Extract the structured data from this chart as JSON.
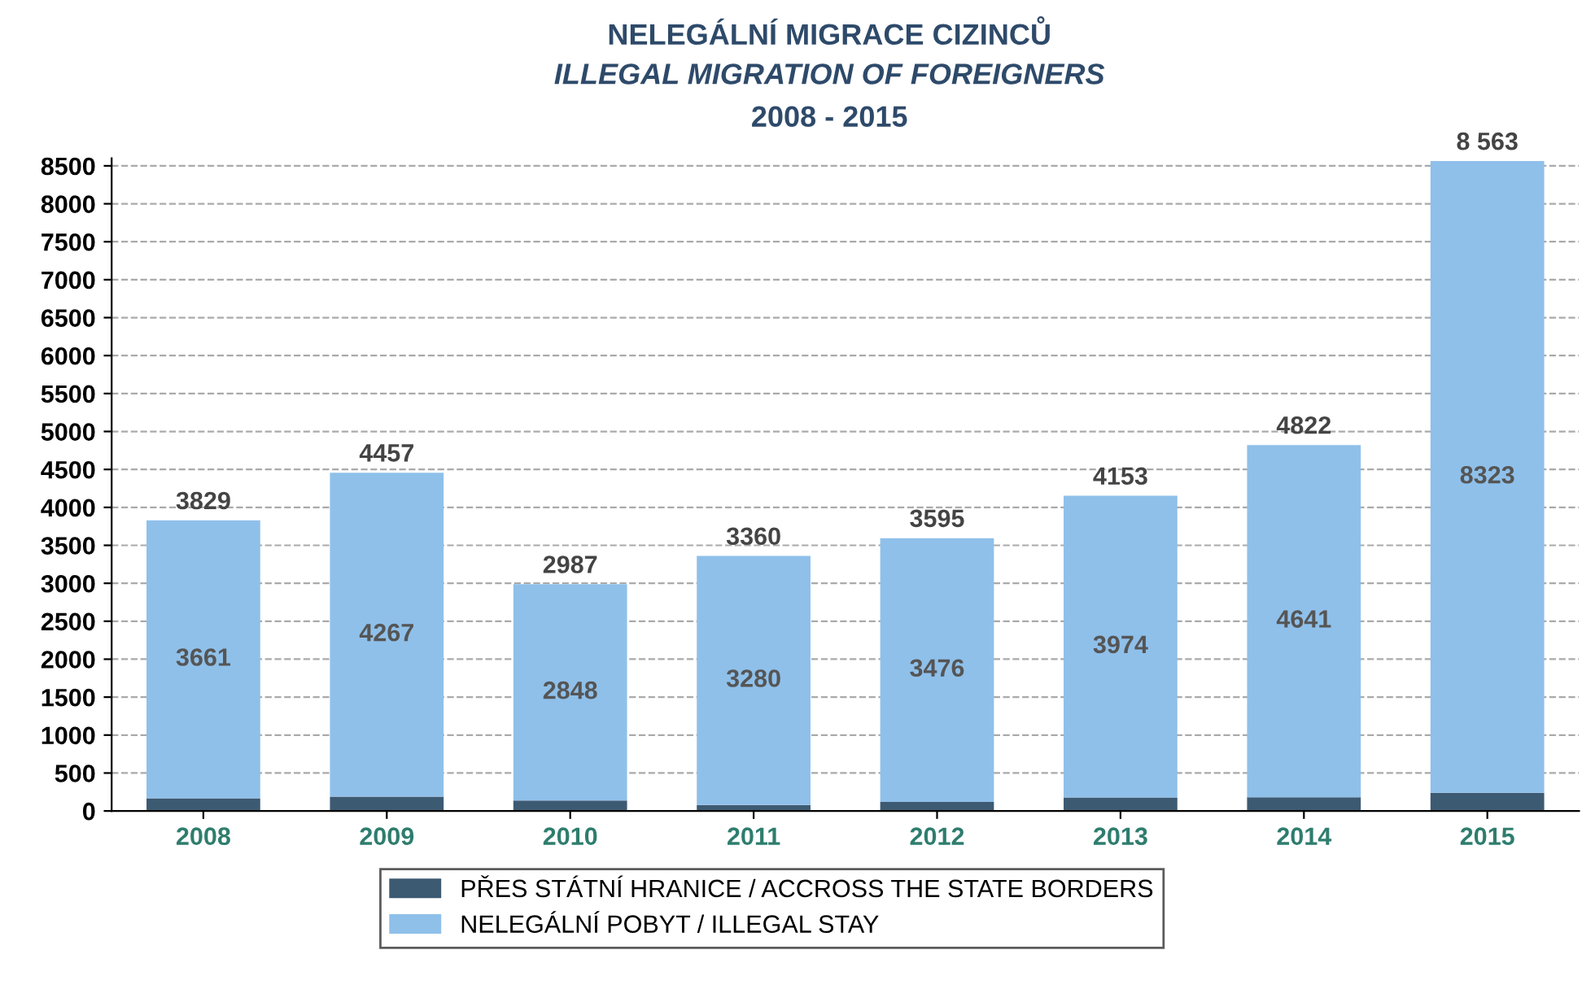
{
  "chart_data": {
    "type": "bar",
    "stacked": true,
    "title": "NELEGÁLNÍ MIGRACE CIZINCŮ",
    "subtitle": "ILLEGAL MIGRATION OF FOREIGNERS",
    "annotations": [
      "2008 - 2015"
    ],
    "categories": [
      "2008",
      "2009",
      "2010",
      "2011",
      "2012",
      "2013",
      "2014",
      "2015"
    ],
    "series": [
      {
        "name": "PŘES STÁTNÍ HRANICE / ACCROSS THE STATE BORDERS",
        "color": "#3d5a73",
        "values": [
          168,
          190,
          139,
          80,
          119,
          179,
          181,
          240
        ]
      },
      {
        "name": "NELEGÁLNÍ POBYT / ILLEGAL STAY",
        "color": "#8fc0ea",
        "values": [
          3661,
          4267,
          2848,
          3280,
          3476,
          3974,
          4641,
          8323
        ],
        "value_labels": [
          "3661",
          "4267",
          "2848",
          "3280",
          "3476",
          "3974",
          "4641",
          "8323"
        ]
      }
    ],
    "totals": [
      "3829",
      "4457",
      "2987",
      "3360",
      "3595",
      "4153",
      "4822",
      "8 563"
    ],
    "ylim": [
      0,
      8600
    ],
    "yticks": [
      0,
      500,
      1000,
      1500,
      2000,
      2500,
      3000,
      3500,
      4000,
      4500,
      5000,
      5500,
      6000,
      6500,
      7000,
      7500,
      8000,
      8500
    ],
    "grid": "y",
    "legend": "bottom"
  }
}
